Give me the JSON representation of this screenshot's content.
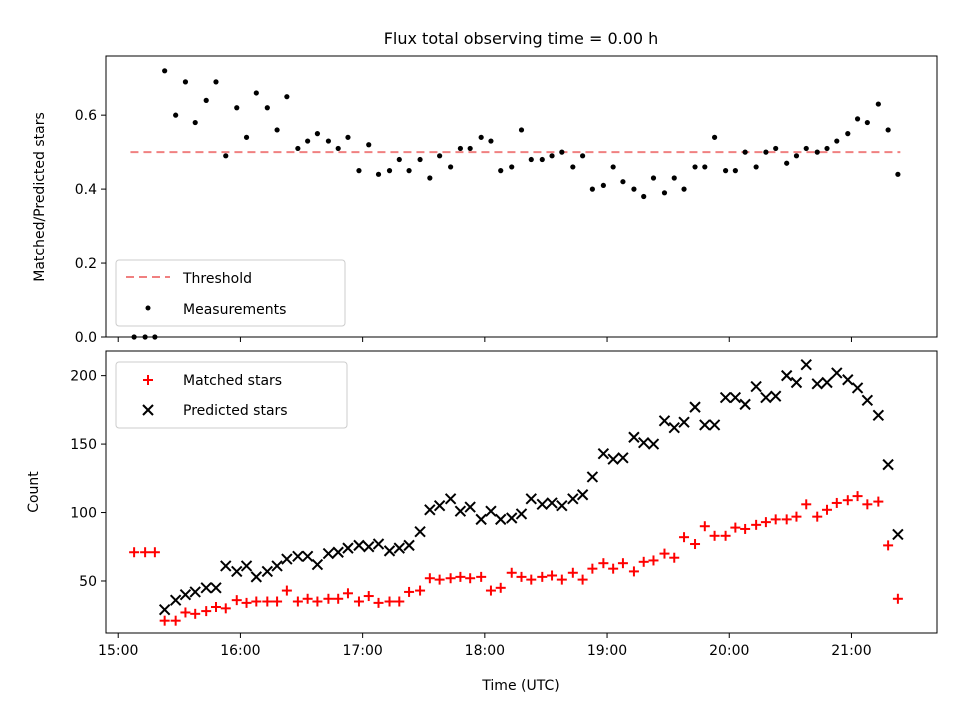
{
  "title": "Flux total observing time = 0.00 h",
  "colors": {
    "threshold": "#f08080",
    "measurements": "#000000",
    "matched": "#ff0000",
    "predicted": "#000000"
  },
  "chart_data": [
    {
      "type": "scatter",
      "ylabel": "Matched/Predicted stars",
      "xlim": [
        14.9,
        21.7
      ],
      "ylim": [
        0,
        0.76
      ],
      "yticks": [
        0.0,
        0.2,
        0.4,
        0.6
      ],
      "ytick_labels": [
        "0.0",
        "0.2",
        "0.4",
        "0.6"
      ],
      "legend": {
        "placement": "lower-left",
        "entries": [
          "Threshold",
          "Measurements"
        ]
      },
      "threshold": {
        "name": "Threshold",
        "value": 0.5,
        "x_start": 15.1,
        "x_end": 21.4
      },
      "series": [
        {
          "name": "Measurements",
          "x": [
            15.13,
            15.22,
            15.3,
            15.38,
            15.47,
            15.55,
            15.63,
            15.72,
            15.8,
            15.88,
            15.97,
            16.05,
            16.13,
            16.22,
            16.3,
            16.38,
            16.47,
            16.55,
            16.63,
            16.72,
            16.8,
            16.88,
            16.97,
            17.05,
            17.13,
            17.22,
            17.3,
            17.38,
            17.47,
            17.55,
            17.63,
            17.72,
            17.8,
            17.88,
            17.97,
            18.05,
            18.13,
            18.22,
            18.3,
            18.38,
            18.47,
            18.55,
            18.63,
            18.72,
            18.8,
            18.88,
            18.97,
            19.05,
            19.13,
            19.22,
            19.3,
            19.38,
            19.47,
            19.55,
            19.63,
            19.72,
            19.8,
            19.88,
            19.97,
            20.05,
            20.13,
            20.22,
            20.3,
            20.38,
            20.47,
            20.55,
            20.63,
            20.72,
            20.8,
            20.88,
            20.97,
            21.05,
            21.13,
            21.22,
            21.3,
            21.38
          ],
          "y": [
            0.0,
            0.0,
            0.0,
            0.72,
            0.6,
            0.69,
            0.58,
            0.64,
            0.69,
            0.49,
            0.62,
            0.54,
            0.66,
            0.62,
            0.56,
            0.65,
            0.51,
            0.53,
            0.55,
            0.53,
            0.51,
            0.54,
            0.45,
            0.52,
            0.44,
            0.45,
            0.48,
            0.45,
            0.48,
            0.43,
            0.49,
            0.46,
            0.51,
            0.51,
            0.54,
            0.53,
            0.45,
            0.46,
            0.56,
            0.48,
            0.48,
            0.49,
            0.5,
            0.46,
            0.49,
            0.4,
            0.41,
            0.46,
            0.42,
            0.4,
            0.38,
            0.43,
            0.39,
            0.43,
            0.4,
            0.46,
            0.46,
            0.54,
            0.45,
            0.45,
            0.5,
            0.46,
            0.5,
            0.51,
            0.47,
            0.49,
            0.51,
            0.5,
            0.51,
            0.53,
            0.55,
            0.59,
            0.58,
            0.63,
            0.56,
            0.44
          ]
        }
      ]
    },
    {
      "type": "scatter",
      "xlabel": "Time (UTC)",
      "ylabel": "Count",
      "xlim": [
        14.9,
        21.7
      ],
      "ylim": [
        12,
        218
      ],
      "xticks": [
        15,
        16,
        17,
        18,
        19,
        20,
        21
      ],
      "xtick_labels": [
        "15:00",
        "16:00",
        "17:00",
        "18:00",
        "19:00",
        "20:00",
        "21:00"
      ],
      "yticks": [
        50,
        100,
        150,
        200
      ],
      "ytick_labels": [
        "50",
        "100",
        "150",
        "200"
      ],
      "legend": {
        "placement": "upper-left",
        "entries": [
          "Matched stars",
          "Predicted stars"
        ]
      },
      "series": [
        {
          "name": "Matched stars",
          "marker": "+",
          "x": [
            15.13,
            15.22,
            15.3,
            15.38,
            15.47,
            15.55,
            15.63,
            15.72,
            15.8,
            15.88,
            15.97,
            16.05,
            16.13,
            16.22,
            16.3,
            16.38,
            16.47,
            16.55,
            16.63,
            16.72,
            16.8,
            16.88,
            16.97,
            17.05,
            17.13,
            17.22,
            17.3,
            17.38,
            17.47,
            17.55,
            17.63,
            17.72,
            17.8,
            17.88,
            17.97,
            18.05,
            18.13,
            18.22,
            18.3,
            18.38,
            18.47,
            18.55,
            18.63,
            18.72,
            18.8,
            18.88,
            18.97,
            19.05,
            19.13,
            19.22,
            19.3,
            19.38,
            19.47,
            19.55,
            19.63,
            19.72,
            19.8,
            19.88,
            19.97,
            20.05,
            20.13,
            20.22,
            20.3,
            20.38,
            20.47,
            20.55,
            20.63,
            20.72,
            20.8,
            20.88,
            20.97,
            21.05,
            21.13,
            21.22,
            21.3,
            21.38
          ],
          "y": [
            71,
            71,
            71,
            21,
            21,
            27,
            26,
            28,
            31,
            30,
            36,
            34,
            35,
            35,
            35,
            43,
            35,
            37,
            35,
            37,
            37,
            41,
            35,
            39,
            34,
            35,
            35,
            42,
            43,
            52,
            51,
            52,
            53,
            52,
            53,
            43,
            45,
            56,
            53,
            51,
            53,
            54,
            51,
            56,
            51,
            59,
            63,
            59,
            63,
            57,
            64,
            65,
            70,
            67,
            82,
            77,
            90,
            83,
            83,
            89,
            88,
            91,
            93,
            95,
            95,
            97,
            106,
            97,
            102,
            107,
            109,
            112,
            106,
            108,
            76,
            37
          ]
        },
        {
          "name": "Predicted stars",
          "marker": "x",
          "x": [
            15.38,
            15.47,
            15.55,
            15.63,
            15.72,
            15.8,
            15.88,
            15.97,
            16.05,
            16.13,
            16.22,
            16.3,
            16.38,
            16.47,
            16.55,
            16.63,
            16.72,
            16.8,
            16.88,
            16.97,
            17.05,
            17.13,
            17.22,
            17.3,
            17.38,
            17.47,
            17.55,
            17.63,
            17.72,
            17.8,
            17.88,
            17.97,
            18.05,
            18.13,
            18.22,
            18.3,
            18.38,
            18.47,
            18.55,
            18.63,
            18.72,
            18.8,
            18.88,
            18.97,
            19.05,
            19.13,
            19.22,
            19.3,
            19.38,
            19.47,
            19.55,
            19.63,
            19.72,
            19.8,
            19.88,
            19.97,
            20.05,
            20.13,
            20.22,
            20.3,
            20.38,
            20.47,
            20.55,
            20.63,
            20.72,
            20.8,
            20.88,
            20.97,
            21.05,
            21.13,
            21.22,
            21.3,
            21.38
          ],
          "y": [
            29,
            36,
            40,
            42,
            45,
            45,
            61,
            57,
            61,
            53,
            57,
            61,
            66,
            68,
            68,
            62,
            70,
            71,
            74,
            76,
            75,
            77,
            72,
            74,
            76,
            86,
            102,
            105,
            110,
            101,
            104,
            95,
            101,
            95,
            96,
            99,
            110,
            106,
            107,
            105,
            110,
            113,
            126,
            143,
            139,
            140,
            155,
            151,
            150,
            167,
            162,
            166,
            177,
            164,
            164,
            184,
            184,
            179,
            192,
            184,
            185,
            200,
            195,
            208,
            194,
            195,
            202,
            197,
            191,
            182,
            171,
            135,
            84
          ]
        }
      ]
    }
  ]
}
